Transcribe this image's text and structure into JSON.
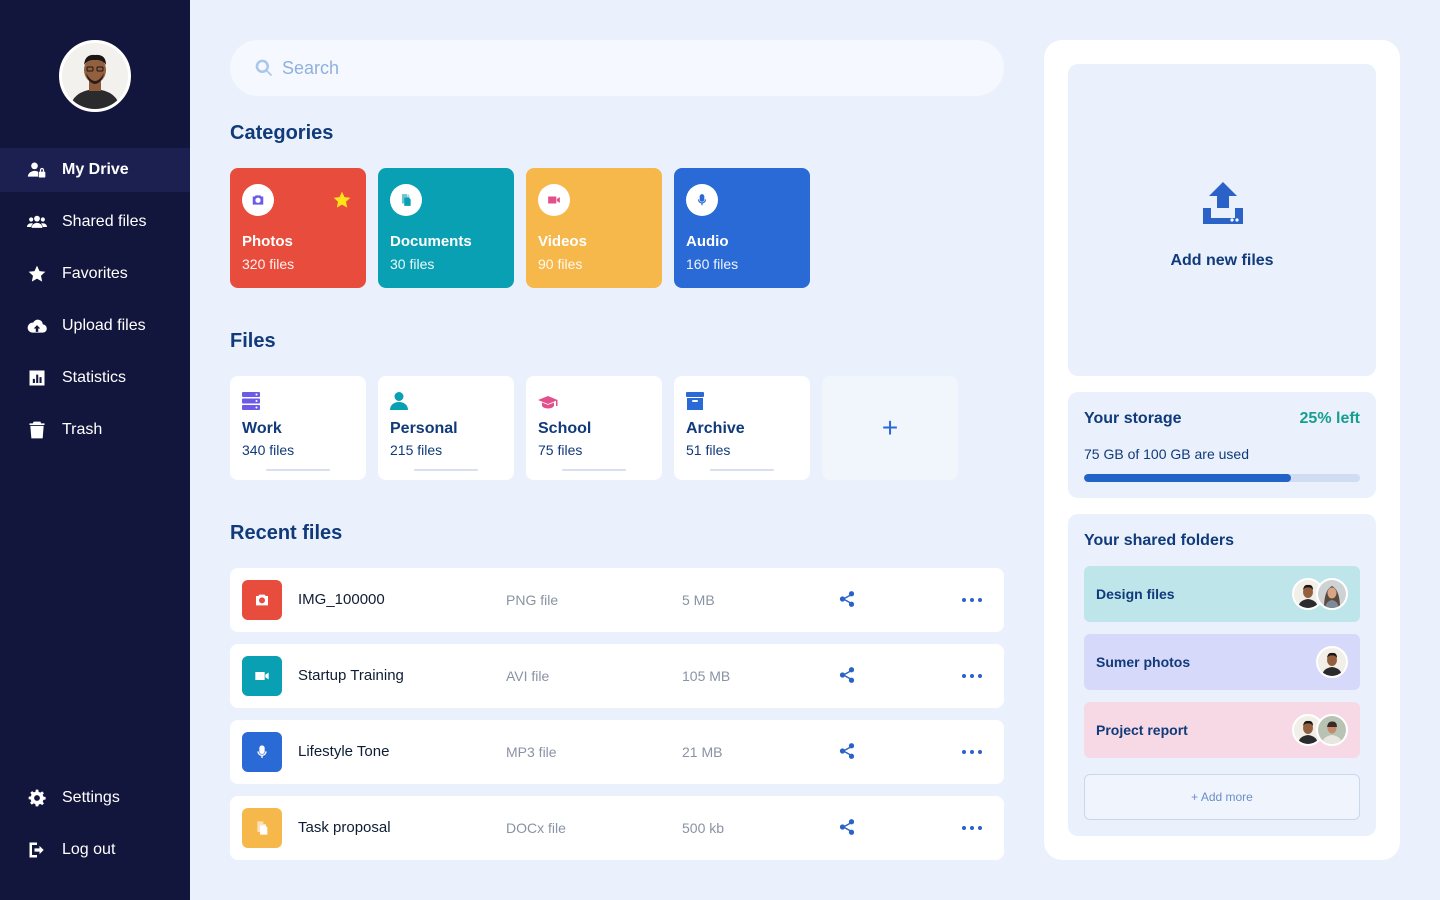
{
  "sidebar": {
    "items": [
      {
        "label": "My Drive",
        "icon": "user-lock-icon"
      },
      {
        "label": "Shared files",
        "icon": "users-icon"
      },
      {
        "label": "Favorites",
        "icon": "star-icon"
      },
      {
        "label": "Upload files",
        "icon": "cloud-upload-icon"
      },
      {
        "label": "Statistics",
        "icon": "chart-icon"
      },
      {
        "label": "Trash",
        "icon": "trash-icon"
      }
    ],
    "bottom": [
      {
        "label": "Settings",
        "icon": "gear-icon"
      },
      {
        "label": "Log out",
        "icon": "logout-icon"
      }
    ]
  },
  "search": {
    "placeholder": "Search"
  },
  "categories": {
    "title": "Categories",
    "items": [
      {
        "name": "Photos",
        "count": "320 files",
        "color": "#e84c3d",
        "icon_color": "#6b5be6"
      },
      {
        "name": "Documents",
        "count": "30 files",
        "color": "#0aa0b4",
        "icon_color": "#0aa0b4"
      },
      {
        "name": "Videos",
        "count": "90 files",
        "color": "#f7b84b",
        "icon_color": "#e24f8a"
      },
      {
        "name": "Audio",
        "count": "160 files",
        "color": "#2a6ad6",
        "icon_color": "#2a6ad6"
      }
    ]
  },
  "files": {
    "title": "Files",
    "items": [
      {
        "name": "Work",
        "count": "340 files",
        "icon": "server-icon",
        "icon_color": "#6b5be6"
      },
      {
        "name": "Personal",
        "count": "215 files",
        "icon": "user-icon",
        "icon_color": "#0aa0b4"
      },
      {
        "name": "School",
        "count": "75 files",
        "icon": "graduation-cap-icon",
        "icon_color": "#e24f8a"
      },
      {
        "name": "Archive",
        "count": "51 files",
        "icon": "archive-icon",
        "icon_color": "#2a6ad6"
      }
    ],
    "add_label": "+"
  },
  "recent": {
    "title": "Recent files",
    "rows": [
      {
        "name": "IMG_100000",
        "type": "PNG file",
        "size": "5 MB",
        "icon": "camera-icon",
        "color": "#e84c3d"
      },
      {
        "name": "Startup Training",
        "type": "AVI file",
        "size": "105 MB",
        "icon": "video-icon",
        "color": "#0aa0b4"
      },
      {
        "name": "Lifestyle Tone",
        "type": "MP3 file",
        "size": "21 MB",
        "icon": "microphone-icon",
        "color": "#2a6ad6"
      },
      {
        "name": "Task proposal",
        "type": "DOCx file",
        "size": "500 kb",
        "icon": "document-icon",
        "color": "#f7b84b"
      }
    ]
  },
  "upload": {
    "label": "Add new files"
  },
  "storage": {
    "title": "Your storage",
    "left": "25% left",
    "used_text": "75 GB of 100 GB are used",
    "used_fraction": 0.75
  },
  "shared": {
    "title": "Your shared folders",
    "folders": [
      {
        "name": "Design files",
        "color": "#bde5ea",
        "avatars": 2
      },
      {
        "name": "Sumer photos",
        "color": "#d7d9fb",
        "avatars": 1
      },
      {
        "name": "Project report",
        "color": "#f7d9e5",
        "avatars": 2
      }
    ],
    "add_more": "+ Add more"
  }
}
